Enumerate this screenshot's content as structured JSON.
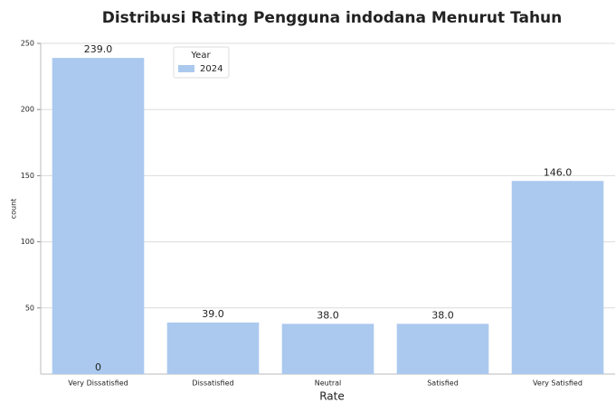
{
  "chart_data": {
    "type": "bar",
    "title": "Distribusi Rating Pengguna indodana Menurut Tahun",
    "x_label": "Rate",
    "y_label": "count",
    "categories": [
      "Very Dissatisfied",
      "Dissatisfied",
      "Neutral",
      "Satisfied",
      "Very Satisfied"
    ],
    "legend_title": "Year",
    "series": [
      {
        "name": "2024",
        "color": "#abc9ee",
        "values": [
          239,
          39,
          38,
          38,
          146
        ],
        "value_labels": [
          "239.0",
          "39.0",
          "38.0",
          "38.0",
          "146.0"
        ]
      }
    ],
    "annotations": [
      {
        "text": "0",
        "x": "Very Dissatisfied",
        "y": 0
      }
    ],
    "ylim": [
      0,
      250
    ],
    "yticks": [
      50,
      100,
      150,
      200,
      250
    ],
    "grid": true,
    "legend_position": "upper-left"
  }
}
